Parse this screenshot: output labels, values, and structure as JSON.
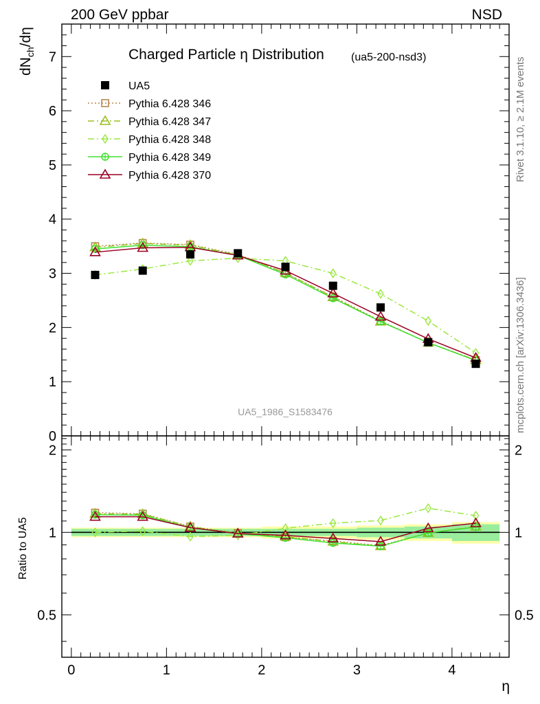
{
  "header": {
    "left": "200 GeV ppbar",
    "right": "NSD"
  },
  "side_text": {
    "rivet": "Rivet 3.1.10, ≥ 2.1M events",
    "mcplots": "mcplots.cern.ch [arXiv:1306.3436]"
  },
  "chart_data": [
    {
      "type": "line",
      "panel": "main",
      "title": "Charged Particle η Distribution",
      "subtitle": "(ua5-200-nsd3)",
      "watermark": "UA5_1986_S1583476",
      "xlabel": "",
      "ylabel": "dN_ch/dη",
      "xlim": [
        -0.1,
        4.6
      ],
      "ylim": [
        0,
        7.6
      ],
      "yticks": [
        0,
        1,
        2,
        3,
        4,
        5,
        6,
        7
      ],
      "grid": false,
      "legend_position": "top-left",
      "x": [
        0.25,
        0.75,
        1.25,
        1.75,
        2.25,
        2.75,
        3.25,
        3.75,
        4.25
      ],
      "series": [
        {
          "name": "UA5",
          "color": "#000000",
          "marker": "square-filled",
          "values": [
            2.97,
            3.05,
            3.35,
            3.37,
            3.12,
            2.77,
            2.37,
            1.73,
            1.33
          ]
        },
        {
          "name": "Pythia 6.428 346",
          "color": "#b5894f",
          "marker": "square-open",
          "dash": "2,3",
          "values": [
            3.5,
            3.56,
            3.53,
            3.35,
            3.0,
            2.57,
            2.12,
            1.72,
            1.4
          ]
        },
        {
          "name": "Pythia 6.428 347",
          "color": "#99bf1f",
          "marker": "triangle-open",
          "dash": "9,4,2,4",
          "values": [
            3.48,
            3.55,
            3.52,
            3.34,
            3.01,
            2.56,
            2.11,
            1.72,
            1.4
          ]
        },
        {
          "name": "Pythia 6.428 348",
          "color": "#99e83f",
          "marker": "diamond-open",
          "dash": "9,4,2,4",
          "values": [
            2.97,
            3.08,
            3.23,
            3.28,
            3.23,
            3.0,
            2.62,
            2.12,
            1.53
          ]
        },
        {
          "name": "Pythia 6.428 349",
          "color": "#40e030",
          "marker": "circle-cross",
          "values": [
            3.45,
            3.52,
            3.49,
            3.33,
            2.98,
            2.54,
            2.11,
            1.72,
            1.39
          ]
        },
        {
          "name": "Pythia 6.428 370",
          "color": "#990022",
          "marker": "triangle-open",
          "values": [
            3.39,
            3.47,
            3.48,
            3.33,
            3.05,
            2.63,
            2.2,
            1.79,
            1.44
          ]
        }
      ]
    },
    {
      "type": "line",
      "panel": "ratio",
      "xlabel": "η",
      "ylabel": "Ratio to UA5",
      "xlim": [
        -0.1,
        4.6
      ],
      "ylim": [
        0.35,
        2.25
      ],
      "yticks": [
        0.5,
        1,
        2
      ],
      "xticks": [
        0,
        1,
        2,
        3,
        4
      ],
      "log_y": true,
      "grid": false,
      "x": [
        0.25,
        0.75,
        1.25,
        1.75,
        2.25,
        2.75,
        3.25,
        3.75,
        4.25
      ],
      "bands": {
        "bins": [
          [
            0,
            0.5
          ],
          [
            0.5,
            1
          ],
          [
            1,
            1.5
          ],
          [
            1.5,
            2
          ],
          [
            2,
            2.5
          ],
          [
            2.5,
            3
          ],
          [
            3,
            3.5
          ],
          [
            3.5,
            4
          ],
          [
            4,
            4.5
          ]
        ],
        "stat": [
          0.03,
          0.03,
          0.03,
          0.03,
          0.03,
          0.03,
          0.04,
          0.05,
          0.07
        ],
        "total": [
          0.04,
          0.04,
          0.04,
          0.04,
          0.05,
          0.05,
          0.06,
          0.07,
          0.09
        ]
      },
      "series": [
        {
          "name": "Pythia 6.428 346",
          "color": "#b5894f",
          "marker": "square-open",
          "dash": "2,3",
          "values": [
            1.18,
            1.17,
            1.05,
            0.995,
            0.96,
            0.93,
            0.895,
            0.995,
            1.05
          ]
        },
        {
          "name": "Pythia 6.428 347",
          "color": "#99bf1f",
          "marker": "triangle-open",
          "dash": "9,4,2,4",
          "values": [
            1.17,
            1.165,
            1.05,
            0.99,
            0.965,
            0.925,
            0.89,
            0.995,
            1.05
          ]
        },
        {
          "name": "Pythia 6.428 348",
          "color": "#99e83f",
          "marker": "diamond-open",
          "dash": "9,4,2,4",
          "values": [
            1.0,
            1.01,
            0.965,
            0.975,
            1.035,
            1.08,
            1.105,
            1.225,
            1.15
          ]
        },
        {
          "name": "Pythia 6.428 349",
          "color": "#40e030",
          "marker": "circle-cross",
          "values": [
            1.16,
            1.155,
            1.04,
            0.99,
            0.955,
            0.915,
            0.89,
            0.995,
            1.045
          ]
        },
        {
          "name": "Pythia 6.428 370",
          "color": "#990022",
          "marker": "triangle-open",
          "values": [
            1.14,
            1.14,
            1.04,
            0.99,
            0.975,
            0.95,
            0.925,
            1.035,
            1.08
          ]
        }
      ]
    }
  ]
}
